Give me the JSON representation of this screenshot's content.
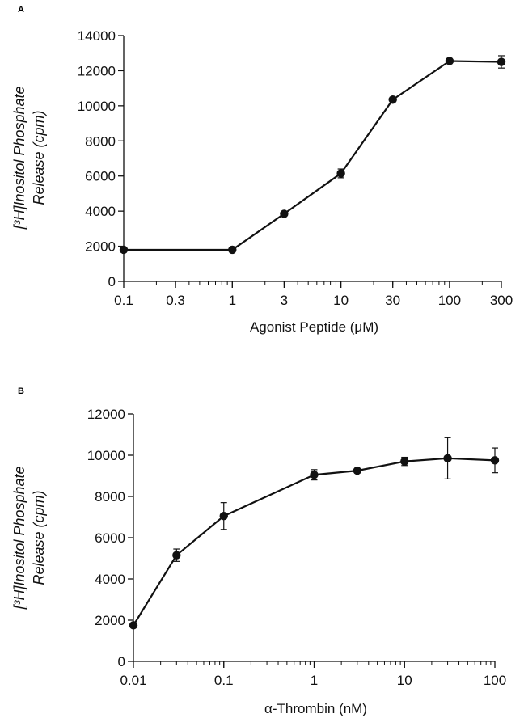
{
  "chart_data": [
    {
      "panel": "A",
      "type": "line",
      "x": [
        0.1,
        1,
        3,
        10,
        30,
        100,
        300
      ],
      "series": [
        {
          "values": [
            1800,
            1800,
            3850,
            6150,
            10350,
            12550,
            12500
          ],
          "errors": [
            0,
            0,
            0,
            250,
            0,
            0,
            350
          ]
        }
      ],
      "xscale": "log",
      "xlim": [
        0.1,
        300
      ],
      "ylim": [
        0,
        14000
      ],
      "xticks": [
        0.1,
        0.3,
        1,
        3,
        10,
        30,
        100,
        300
      ],
      "xtick_labels": [
        "0.1",
        "0.3",
        "1",
        "3",
        "10",
        "30",
        "100",
        "300"
      ],
      "yticks": [
        0,
        2000,
        4000,
        6000,
        8000,
        10000,
        12000,
        14000
      ],
      "ytick_labels": [
        "0",
        "2000",
        "4000",
        "6000",
        "8000",
        "10000",
        "12000",
        "14000"
      ],
      "xlabel": "Agonist Peptide (μM)",
      "ylabel_line1": "[³H]Inositol Phosphate",
      "ylabel_line2": "Release (cpm)",
      "grid": false,
      "color": "#111111"
    },
    {
      "panel": "B",
      "type": "line",
      "x": [
        0.01,
        0.03,
        0.1,
        1,
        3,
        10,
        30,
        100
      ],
      "series": [
        {
          "values": [
            1750,
            5150,
            7050,
            9050,
            9250,
            9700,
            9850,
            9750
          ],
          "errors": [
            0,
            300,
            650,
            250,
            0,
            200,
            1000,
            600
          ]
        }
      ],
      "xscale": "log",
      "xlim": [
        0.01,
        100
      ],
      "ylim": [
        0,
        12000
      ],
      "xticks": [
        0.01,
        0.1,
        1,
        10,
        100
      ],
      "xtick_labels": [
        "0.01",
        "0.1",
        "1",
        "10",
        "100"
      ],
      "yticks": [
        0,
        2000,
        4000,
        6000,
        8000,
        10000,
        12000
      ],
      "ytick_labels": [
        "0",
        "2000",
        "4000",
        "6000",
        "8000",
        "10000",
        "12000"
      ],
      "xlabel": "α-Thrombin (nM)",
      "ylabel_line1": "[³H]Inositol Phosphate",
      "ylabel_line2": "Release (cpm)",
      "grid": false,
      "color": "#111111"
    }
  ]
}
